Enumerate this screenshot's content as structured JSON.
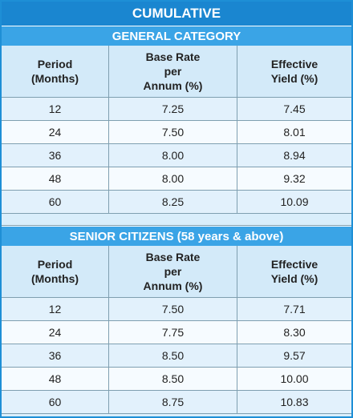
{
  "title": "CUMULATIVE",
  "sections": [
    {
      "heading": "GENERAL CATEGORY",
      "columns": [
        [
          "Period",
          "(Months)"
        ],
        [
          "Base Rate",
          "per",
          "Annum (%)"
        ],
        [
          "Effective",
          "Yield (%)"
        ]
      ],
      "rows": [
        [
          "12",
          "7.25",
          "7.45"
        ],
        [
          "24",
          "7.50",
          "8.01"
        ],
        [
          "36",
          "8.00",
          "8.94"
        ],
        [
          "48",
          "8.00",
          "9.32"
        ],
        [
          "60",
          "8.25",
          "10.09"
        ]
      ]
    },
    {
      "heading": "SENIOR CITIZENS (58 years & above)",
      "columns": [
        [
          "Period",
          "(Months)"
        ],
        [
          "Base Rate",
          "per",
          "Annum (%)"
        ],
        [
          "Effective",
          "Yield (%)"
        ]
      ],
      "rows": [
        [
          "12",
          "7.50",
          "7.71"
        ],
        [
          "24",
          "7.75",
          "8.30"
        ],
        [
          "36",
          "8.50",
          "9.57"
        ],
        [
          "48",
          "8.50",
          "10.00"
        ],
        [
          "60",
          "8.75",
          "10.83"
        ]
      ]
    }
  ]
}
